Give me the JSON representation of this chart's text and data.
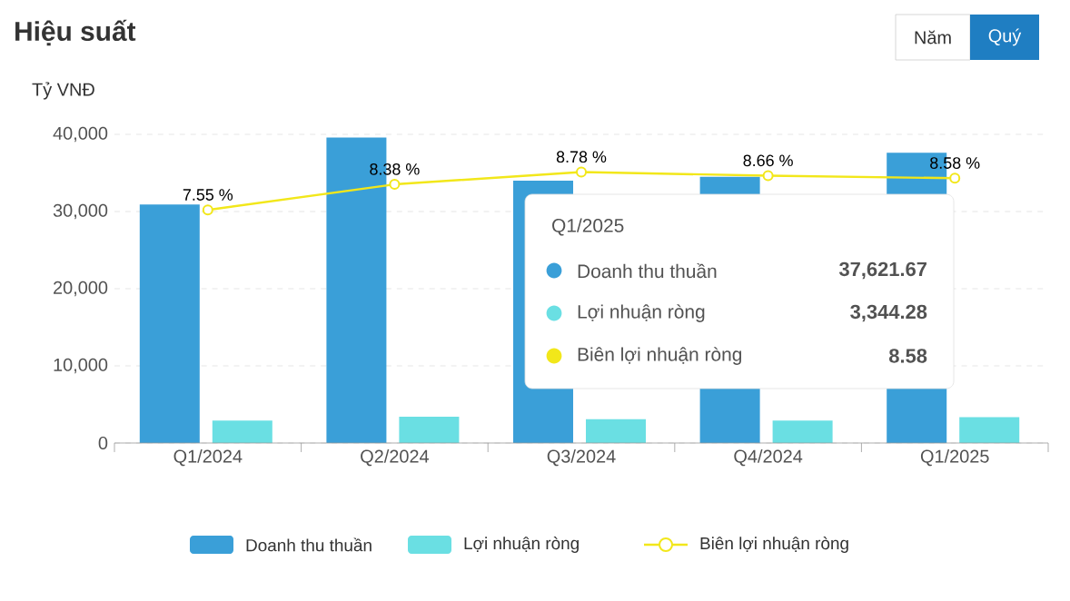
{
  "chart_data": {
    "type": "bar",
    "title": "Hiệu suất",
    "ylabel": "Tỷ VNĐ",
    "categories": [
      "Q1/2024",
      "Q2/2024",
      "Q3/2024",
      "Q4/2024",
      "Q1/2025"
    ],
    "series": [
      {
        "name": "Doanh thu thuần",
        "color": "#3a9fd8",
        "values": [
          30900,
          39600,
          34000,
          34500,
          37621.67
        ]
      },
      {
        "name": "Lợi nhuận ròng",
        "color": "#6adfe3",
        "values": [
          2900,
          3400,
          3100,
          2900,
          3344.28
        ]
      },
      {
        "name": "Biên lợi nhuận ròng",
        "type": "line",
        "axis": "y2",
        "color": "#f2e71a",
        "marker": "circle",
        "values": [
          7.55,
          8.38,
          8.78,
          8.66,
          8.58
        ],
        "value_labels": [
          "7.55 %",
          "8.38 %",
          "8.78 %",
          "8.66 %",
          "8.58 %"
        ]
      }
    ],
    "ylim": [
      0,
      40000
    ],
    "yticks": [
      0,
      {
        "value": 10000,
        "label": "10,000"
      },
      {
        "value": 20000,
        "label": "20,000"
      },
      {
        "value": 30000,
        "label": "30,000"
      },
      {
        "value": 40000,
        "label": "40,000"
      }
    ],
    "y2lim": [
      0,
      10
    ],
    "grid": "y",
    "legend": "bottom",
    "annotations": [
      "Năm",
      "Quý",
      "Q1/2025",
      "Doanh thu thuần",
      "37,621.67",
      "Lợi nhuận ròng",
      "3,344.28",
      "Biên lợi nhuận ròng",
      "8.58"
    ]
  }
}
